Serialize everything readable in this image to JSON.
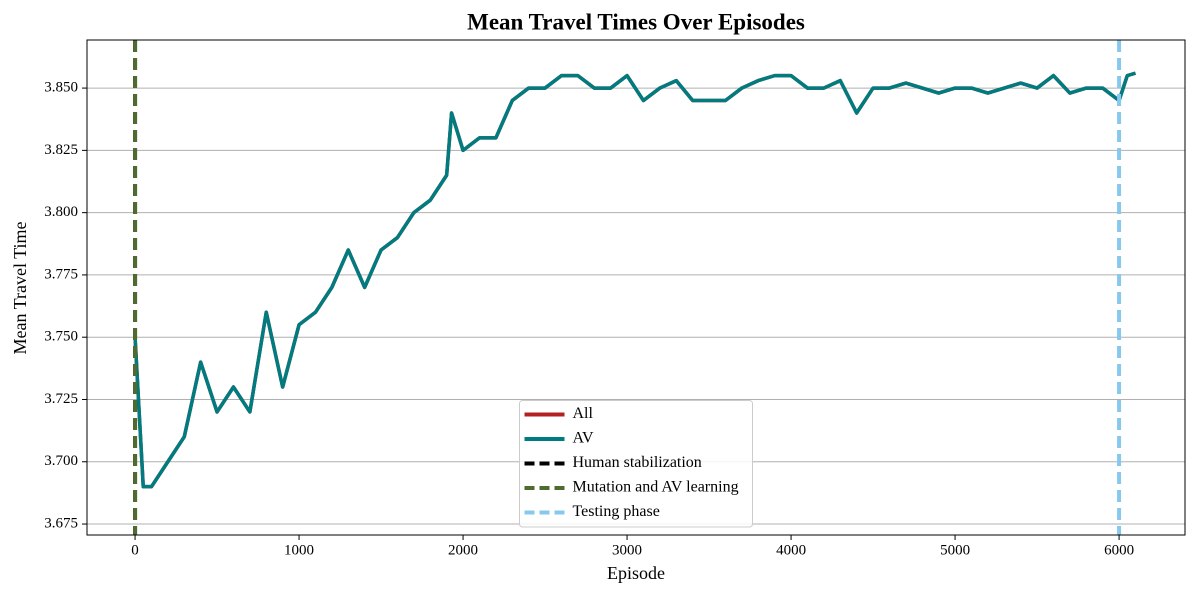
{
  "chart_data": {
    "type": "line",
    "title": "Mean Travel Times Over Episodes",
    "xlabel": "Episode",
    "ylabel": "Mean Travel Time",
    "x": [
      0,
      50,
      100,
      200,
      300,
      400,
      500,
      600,
      700,
      800,
      900,
      1000,
      1100,
      1200,
      1300,
      1400,
      1500,
      1600,
      1700,
      1800,
      1900,
      1930,
      2000,
      2100,
      2200,
      2300,
      2400,
      2500,
      2600,
      2700,
      2800,
      2900,
      3000,
      3100,
      3200,
      3300,
      3400,
      3500,
      3600,
      3700,
      3800,
      3900,
      4000,
      4100,
      4200,
      4300,
      4400,
      4500,
      4600,
      4700,
      4800,
      4900,
      5000,
      5100,
      5200,
      5300,
      5400,
      5500,
      5600,
      5700,
      5800,
      5900,
      6000,
      6050,
      6100
    ],
    "series": [
      {
        "name": "All",
        "color": "#b22222",
        "values": [
          3.75,
          3.69,
          3.69,
          3.7,
          3.71,
          3.74,
          3.72,
          3.73,
          3.72,
          3.76,
          3.73,
          3.755,
          3.76,
          3.77,
          3.785,
          3.77,
          3.785,
          3.79,
          3.8,
          3.805,
          3.815,
          3.84,
          3.825,
          3.83,
          3.83,
          3.845,
          3.85,
          3.85,
          3.855,
          3.855,
          3.85,
          3.85,
          3.855,
          3.845,
          3.85,
          3.853,
          3.845,
          3.845,
          3.845,
          3.85,
          3.853,
          3.855,
          3.855,
          3.85,
          3.85,
          3.853,
          3.84,
          3.85,
          3.85,
          3.852,
          3.85,
          3.848,
          3.85,
          3.85,
          3.848,
          3.85,
          3.852,
          3.85,
          3.855,
          3.848,
          3.85,
          3.85,
          3.845,
          3.855,
          3.856
        ]
      },
      {
        "name": "AV",
        "color": "#007b7f",
        "values": [
          3.75,
          3.69,
          3.69,
          3.7,
          3.71,
          3.74,
          3.72,
          3.73,
          3.72,
          3.76,
          3.73,
          3.755,
          3.76,
          3.77,
          3.785,
          3.77,
          3.785,
          3.79,
          3.8,
          3.805,
          3.815,
          3.84,
          3.825,
          3.83,
          3.83,
          3.845,
          3.85,
          3.85,
          3.855,
          3.855,
          3.85,
          3.85,
          3.855,
          3.845,
          3.85,
          3.853,
          3.845,
          3.845,
          3.845,
          3.85,
          3.853,
          3.855,
          3.855,
          3.85,
          3.85,
          3.853,
          3.84,
          3.85,
          3.85,
          3.852,
          3.85,
          3.848,
          3.85,
          3.85,
          3.848,
          3.85,
          3.852,
          3.85,
          3.855,
          3.848,
          3.85,
          3.85,
          3.845,
          3.855,
          3.856
        ]
      }
    ],
    "vlines": [
      {
        "name": "Human stabilization",
        "color": "#000000",
        "x": 0
      },
      {
        "name": "Mutation and AV learning",
        "color": "#4f6b2f",
        "x": 0
      },
      {
        "name": "Testing phase",
        "color": "#87c8ec",
        "x": 6000
      }
    ],
    "xlim": [
      -293,
      6402
    ],
    "ylim": [
      3.6706,
      3.8693
    ],
    "xticks": [
      0,
      1000,
      2000,
      3000,
      4000,
      5000,
      6000
    ],
    "yticks": [
      {
        "value": 3.675,
        "label": "3.675"
      },
      {
        "value": 3.7,
        "label": "3.700"
      },
      {
        "value": 3.725,
        "label": "3.725"
      },
      {
        "value": 3.75,
        "label": "3.750"
      },
      {
        "value": 3.775,
        "label": "3.775"
      },
      {
        "value": 3.8,
        "label": "3.800"
      },
      {
        "value": 3.825,
        "label": "3.825"
      },
      {
        "value": 3.85,
        "label": "3.850"
      }
    ],
    "grid": "y",
    "legend": "lower center"
  }
}
